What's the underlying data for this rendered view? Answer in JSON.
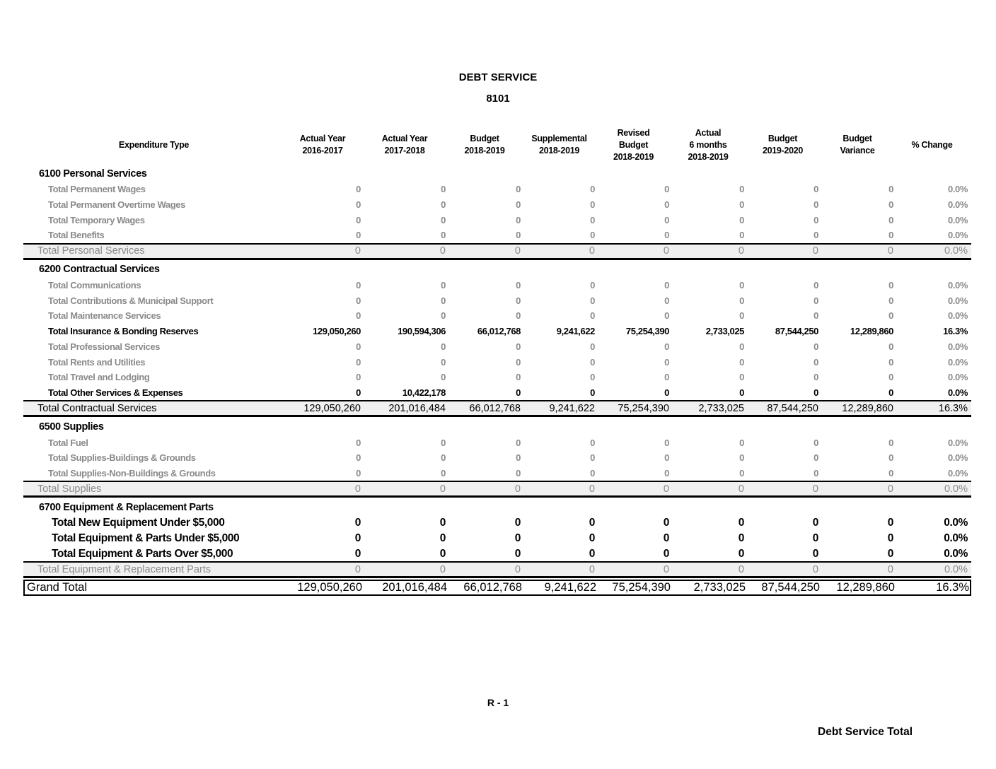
{
  "title": "DEBT SERVICE",
  "code": "8101",
  "headers": [
    "Expenditure Type",
    "Actual Year\n2016-2017",
    "Actual Year\n2017-2018",
    "Budget\n2018-2019",
    "Supplemental\n2018-2019",
    "Revised\nBudget\n2018-2019",
    "Actual\n6 months\n2018-2019",
    "Budget\n2019-2020",
    "Budget\nVariance",
    "% Change"
  ],
  "rows": [
    {
      "type": "section",
      "label": "6100 Personal Services",
      "values": []
    },
    {
      "type": "detail",
      "label": "Total Permanent Wages",
      "values": [
        "0",
        "0",
        "0",
        "0",
        "0",
        "0",
        "0",
        "0",
        "0.0%"
      ]
    },
    {
      "type": "detail",
      "label": "Total Permanent Overtime Wages",
      "values": [
        "0",
        "0",
        "0",
        "0",
        "0",
        "0",
        "0",
        "0",
        "0.0%"
      ]
    },
    {
      "type": "detail",
      "label": "Total Temporary Wages",
      "values": [
        "0",
        "0",
        "0",
        "0",
        "0",
        "0",
        "0",
        "0",
        "0.0%"
      ]
    },
    {
      "type": "detail",
      "label": "Total Benefits",
      "values": [
        "0",
        "0",
        "0",
        "0",
        "0",
        "0",
        "0",
        "0",
        "0.0%"
      ]
    },
    {
      "type": "subtotal",
      "label": "Total Personal Services",
      "values": [
        "0",
        "0",
        "0",
        "0",
        "0",
        "0",
        "0",
        "0",
        "0.0%"
      ]
    },
    {
      "type": "section",
      "label": "6200 Contractual Services",
      "values": []
    },
    {
      "type": "detail",
      "label": "Total Communications",
      "values": [
        "0",
        "0",
        "0",
        "0",
        "0",
        "0",
        "0",
        "0",
        "0.0%"
      ]
    },
    {
      "type": "detail",
      "label": "Total Contributions & Municipal Support",
      "values": [
        "0",
        "0",
        "0",
        "0",
        "0",
        "0",
        "0",
        "0",
        "0.0%"
      ]
    },
    {
      "type": "detail",
      "label": "Total Maintenance Services",
      "values": [
        "0",
        "0",
        "0",
        "0",
        "0",
        "0",
        "0",
        "0",
        "0.0%"
      ]
    },
    {
      "type": "detail",
      "highlight": true,
      "label": "Total Insurance & Bonding Reserves",
      "values": [
        "129,050,260",
        "190,594,306",
        "66,012,768",
        "9,241,622",
        "75,254,390",
        "2,733,025",
        "87,544,250",
        "12,289,860",
        "16.3%"
      ]
    },
    {
      "type": "detail",
      "label": "Total Professional Services",
      "values": [
        "0",
        "0",
        "0",
        "0",
        "0",
        "0",
        "0",
        "0",
        "0.0%"
      ]
    },
    {
      "type": "detail",
      "label": "Total Rents and Utilities",
      "values": [
        "0",
        "0",
        "0",
        "0",
        "0",
        "0",
        "0",
        "0",
        "0.0%"
      ]
    },
    {
      "type": "detail",
      "label": "Total Travel and Lodging",
      "values": [
        "0",
        "0",
        "0",
        "0",
        "0",
        "0",
        "0",
        "0",
        "0.0%"
      ]
    },
    {
      "type": "detail",
      "highlight": true,
      "label": "Total Other Services & Expenses",
      "values": [
        "0",
        "10,422,178",
        "0",
        "0",
        "0",
        "0",
        "0",
        "0",
        "0.0%"
      ]
    },
    {
      "type": "subtotal",
      "highlight": true,
      "label": "Total Contractual Services",
      "values": [
        "129,050,260",
        "201,016,484",
        "66,012,768",
        "9,241,622",
        "75,254,390",
        "2,733,025",
        "87,544,250",
        "12,289,860",
        "16.3%"
      ]
    },
    {
      "type": "section",
      "label": "6500 Supplies",
      "values": []
    },
    {
      "type": "detail",
      "label": "Total Fuel",
      "values": [
        "0",
        "0",
        "0",
        "0",
        "0",
        "0",
        "0",
        "0",
        "0.0%"
      ]
    },
    {
      "type": "detail",
      "label": "Total Supplies-Buildings & Grounds",
      "values": [
        "0",
        "0",
        "0",
        "0",
        "0",
        "0",
        "0",
        "0",
        "0.0%"
      ]
    },
    {
      "type": "detail",
      "label": "Total Supplies-Non-Buildings & Grounds",
      "values": [
        "0",
        "0",
        "0",
        "0",
        "0",
        "0",
        "0",
        "0",
        "0.0%"
      ]
    },
    {
      "type": "subtotal",
      "label": "Total Supplies",
      "values": [
        "0",
        "0",
        "0",
        "0",
        "0",
        "0",
        "0",
        "0",
        "0.0%"
      ]
    },
    {
      "type": "section",
      "label": "6700 Equipment & Replacement Parts",
      "values": []
    },
    {
      "type": "big",
      "label": "Total New Equipment Under $5,000",
      "values": [
        "0",
        "0",
        "0",
        "0",
        "0",
        "0",
        "0",
        "0",
        "0.0%"
      ]
    },
    {
      "type": "big",
      "label": "Total Equipment & Parts Under $5,000",
      "values": [
        "0",
        "0",
        "0",
        "0",
        "0",
        "0",
        "0",
        "0",
        "0.0%"
      ]
    },
    {
      "type": "big",
      "label": "Total Equipment & Parts Over $5,000",
      "values": [
        "0",
        "0",
        "0",
        "0",
        "0",
        "0",
        "0",
        "0",
        "0.0%"
      ]
    },
    {
      "type": "subtotal",
      "label": "Total Equipment & Replacement Parts",
      "values": [
        "0",
        "0",
        "0",
        "0",
        "0",
        "0",
        "0",
        "0",
        "0.0%"
      ]
    },
    {
      "type": "grand",
      "label": "Grand Total",
      "values": [
        "129,050,260",
        "201,016,484",
        "66,012,768",
        "9,241,622",
        "75,254,390",
        "2,733,025",
        "87,544,250",
        "12,289,860",
        "16.3%"
      ]
    }
  ],
  "footer": {
    "page": "R - 1",
    "name": "Debt Service Total"
  }
}
